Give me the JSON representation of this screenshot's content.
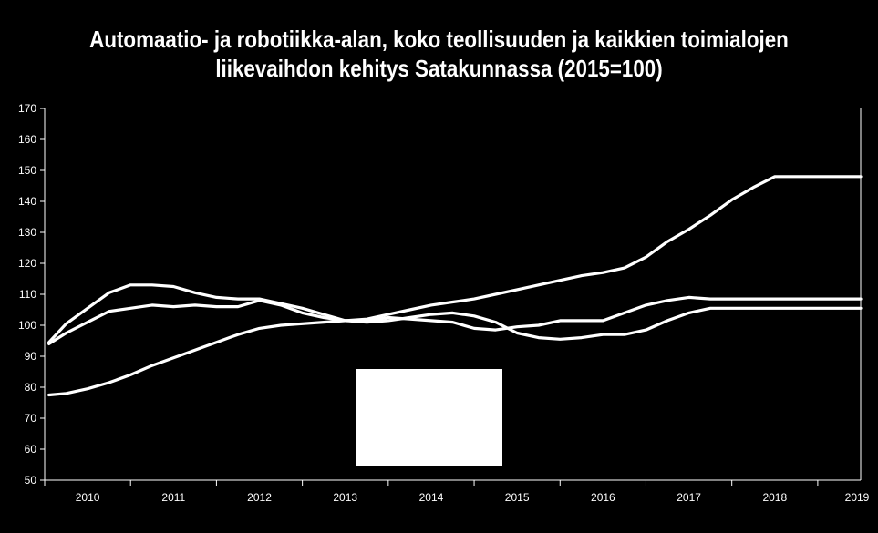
{
  "chart_data": {
    "type": "line",
    "title": [
      "Automaatio- ja robotiikka-alan, koko teollisuuden ja kaikkien toimialojen",
      "liikevaihdon kehitys Satakunnassa (2015=100)"
    ],
    "xlabel": "",
    "ylabel": "",
    "ylim": [
      50,
      170
    ],
    "yticks": [
      "50",
      "60",
      "70",
      "80",
      "90",
      "100",
      "110",
      "120",
      "130",
      "140",
      "150",
      "160",
      "170"
    ],
    "xlim": [
      2009.5,
      2019.0
    ],
    "xticks": [
      "2010",
      "2011",
      "2012",
      "2013",
      "2014",
      "2015",
      "2016",
      "2017",
      "2018",
      "2019"
    ],
    "grid": false,
    "legend": "hidden",
    "legend_box_color": "#ffffff",
    "line_color": "#ffffff",
    "series": [
      {
        "x": [
          2009.55,
          2009.75,
          2010.0,
          2010.25,
          2010.5,
          2010.75,
          2011.0,
          2011.25,
          2011.5,
          2011.75,
          2012.0,
          2012.25,
          2012.5,
          2012.75,
          2013.0,
          2013.25,
          2013.5,
          2013.75,
          2014.0,
          2014.25,
          2014.5,
          2014.75,
          2015.0,
          2015.25,
          2015.5,
          2015.75,
          2016.0,
          2016.25,
          2016.5,
          2016.75,
          2017.0,
          2017.25,
          2017.5,
          2017.75,
          2018.0,
          2018.25,
          2018.5,
          2018.75,
          2019.0
        ],
        "values": [
          77.5,
          78.0,
          79.5,
          81.5,
          84.0,
          87.0,
          89.5,
          92.0,
          94.5,
          97.0,
          99.0,
          100.0,
          100.5,
          101.0,
          101.5,
          102.0,
          103.5,
          105.0,
          106.5,
          107.5,
          108.5,
          110.0,
          111.5,
          113.0,
          114.5,
          116.0,
          117.0,
          118.5,
          122.0,
          127.0,
          131.0,
          135.5,
          140.5,
          144.5,
          148.0,
          148.0,
          148.0,
          148.0,
          148.0
        ]
      },
      {
        "x": [
          2009.55,
          2009.75,
          2010.0,
          2010.25,
          2010.5,
          2010.75,
          2011.0,
          2011.25,
          2011.5,
          2011.75,
          2012.0,
          2012.25,
          2012.5,
          2012.75,
          2013.0,
          2013.25,
          2013.5,
          2013.75,
          2014.0,
          2014.25,
          2014.5,
          2014.75,
          2015.0,
          2015.25,
          2015.5,
          2015.75,
          2016.0,
          2016.25,
          2016.5,
          2016.75,
          2017.0,
          2017.25,
          2017.5,
          2017.75,
          2018.0,
          2018.25,
          2018.5,
          2018.75,
          2019.0
        ],
        "values": [
          94.5,
          100.5,
          105.5,
          110.5,
          113.0,
          113.0,
          112.5,
          110.5,
          109.0,
          108.5,
          108.5,
          107.0,
          105.5,
          103.5,
          101.5,
          101.0,
          101.5,
          102.5,
          103.5,
          104.0,
          103.0,
          101.0,
          97.5,
          96.0,
          95.5,
          96.0,
          97.0,
          97.0,
          98.5,
          101.5,
          104.0,
          105.5,
          105.5,
          105.5,
          105.5,
          105.5,
          105.5,
          105.5,
          105.5
        ]
      },
      {
        "x": [
          2009.55,
          2009.75,
          2010.0,
          2010.25,
          2010.5,
          2010.75,
          2011.0,
          2011.25,
          2011.5,
          2011.75,
          2012.0,
          2012.25,
          2012.5,
          2012.75,
          2013.0,
          2013.25,
          2013.5,
          2013.75,
          2014.0,
          2014.25,
          2014.5,
          2014.75,
          2015.0,
          2015.25,
          2015.5,
          2015.75,
          2016.0,
          2016.25,
          2016.5,
          2016.75,
          2017.0,
          2017.25,
          2017.5,
          2017.75,
          2018.0,
          2018.25,
          2018.5,
          2018.75,
          2019.0
        ],
        "values": [
          94.0,
          97.5,
          101.0,
          104.5,
          105.5,
          106.5,
          106.0,
          106.5,
          106.0,
          106.0,
          108.0,
          106.5,
          104.0,
          102.5,
          101.5,
          101.5,
          102.5,
          102.0,
          101.5,
          101.0,
          99.0,
          98.5,
          99.5,
          100.0,
          101.5,
          101.5,
          101.5,
          104.0,
          106.5,
          108.0,
          109.0,
          108.5,
          108.5,
          108.5,
          108.5,
          108.5,
          108.5,
          108.5,
          108.5
        ]
      }
    ]
  }
}
